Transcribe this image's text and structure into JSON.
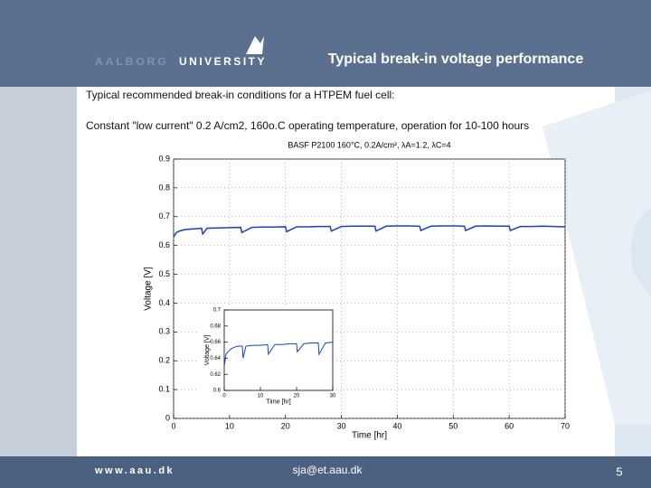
{
  "header": {
    "logo": [
      "AALBORG",
      "UNIVERSITY"
    ],
    "title": "Typical break-in voltage performance"
  },
  "body": [
    "Typical recommended break-in conditions for a HTPEM fuel cell:",
    "Constant \"low current\" 0.2 A/cm2, 160o.C operating temperature, operation for 10-100 hours"
  ],
  "footer": {
    "site": "www.aau.dk",
    "email": "sja@et.aau.dk",
    "page": "5"
  },
  "chart_data": [
    {
      "type": "line",
      "title": "BASF P2100 160°C, 0.2A/cm², λA=1.2, λC=4",
      "xlabel": "Time [hr]",
      "ylabel": "Voltage [V]",
      "xlim": [
        0,
        70
      ],
      "xticks": [
        0,
        10,
        20,
        30,
        40,
        50,
        60,
        70
      ],
      "ylim": [
        0,
        0.9
      ],
      "yticks": [
        0,
        0.1,
        0.2,
        0.3,
        0.4,
        0.5,
        0.6,
        0.7,
        0.8,
        0.9
      ],
      "grid": true,
      "series": [
        {
          "color": "#1a3fc8",
          "x": [
            0,
            0.5,
            1,
            2,
            3,
            4,
            5,
            5.2,
            6,
            8,
            10,
            12,
            12.2,
            14,
            16,
            18,
            20,
            20.2,
            22,
            24,
            26,
            28,
            28.2,
            30,
            32,
            34,
            36,
            36.2,
            38,
            40,
            42,
            44,
            44.2,
            46,
            48,
            50,
            52,
            52.2,
            54,
            56,
            58,
            60,
            60.2,
            62,
            64,
            66,
            68,
            70
          ],
          "values": [
            0.63,
            0.645,
            0.65,
            0.655,
            0.657,
            0.658,
            0.66,
            0.64,
            0.66,
            0.661,
            0.662,
            0.663,
            0.645,
            0.663,
            0.664,
            0.664,
            0.665,
            0.648,
            0.665,
            0.665,
            0.666,
            0.666,
            0.65,
            0.666,
            0.667,
            0.667,
            0.667,
            0.65,
            0.667,
            0.668,
            0.668,
            0.667,
            0.652,
            0.667,
            0.668,
            0.668,
            0.667,
            0.652,
            0.667,
            0.668,
            0.667,
            0.667,
            0.652,
            0.666,
            0.666,
            0.667,
            0.666,
            0.665
          ]
        }
      ]
    },
    {
      "type": "line",
      "xlabel": "Time [hr]",
      "ylabel": "Voltage [V]",
      "xlim": [
        0,
        30
      ],
      "xticks": [
        0,
        10,
        20,
        30
      ],
      "ylim": [
        0.6,
        0.7
      ],
      "yticks": [
        0.6,
        0.62,
        0.64,
        0.66,
        0.68,
        0.7
      ],
      "grid": false,
      "series": [
        {
          "color": "#1a3fc8",
          "x": [
            0,
            0.5,
            1,
            2,
            3,
            4,
            5,
            5.2,
            6,
            8,
            10,
            12,
            12.2,
            14,
            16,
            18,
            20,
            20.2,
            22,
            24,
            26,
            26.2,
            28,
            30
          ],
          "values": [
            0.63,
            0.645,
            0.648,
            0.652,
            0.654,
            0.655,
            0.655,
            0.64,
            0.655,
            0.656,
            0.656,
            0.657,
            0.645,
            0.657,
            0.657,
            0.658,
            0.658,
            0.648,
            0.658,
            0.659,
            0.659,
            0.645,
            0.659,
            0.66
          ]
        }
      ]
    }
  ]
}
